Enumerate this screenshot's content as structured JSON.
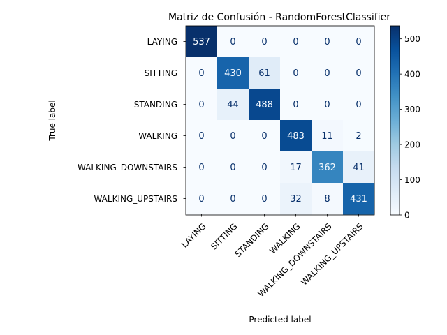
{
  "chart_data": {
    "type": "heatmap",
    "title": "Matriz de Confusión - RandomForestClassifier",
    "xlabel": "Predicted label",
    "ylabel": "True label",
    "x_categories": [
      "LAYING",
      "SITTING",
      "STANDING",
      "WALKING",
      "WALKING_DOWNSTAIRS",
      "WALKING_UPSTAIRS"
    ],
    "y_categories": [
      "LAYING",
      "SITTING",
      "STANDING",
      "WALKING",
      "WALKING_DOWNSTAIRS",
      "WALKING_UPSTAIRS"
    ],
    "values": [
      [
        537,
        0,
        0,
        0,
        0,
        0
      ],
      [
        0,
        430,
        61,
        0,
        0,
        0
      ],
      [
        0,
        44,
        488,
        0,
        0,
        0
      ],
      [
        0,
        0,
        0,
        483,
        11,
        2
      ],
      [
        0,
        0,
        0,
        17,
        362,
        41
      ],
      [
        0,
        0,
        0,
        32,
        8,
        431
      ]
    ],
    "colormap": "Blues",
    "vmin": 0,
    "vmax": 537,
    "colorbar_ticks": [
      0,
      100,
      200,
      300,
      400,
      500
    ],
    "colors": {
      "low": "#f7fbff",
      "high": "#08306b",
      "text_dark": "#08306b",
      "text_light": "#f7fbff"
    }
  }
}
